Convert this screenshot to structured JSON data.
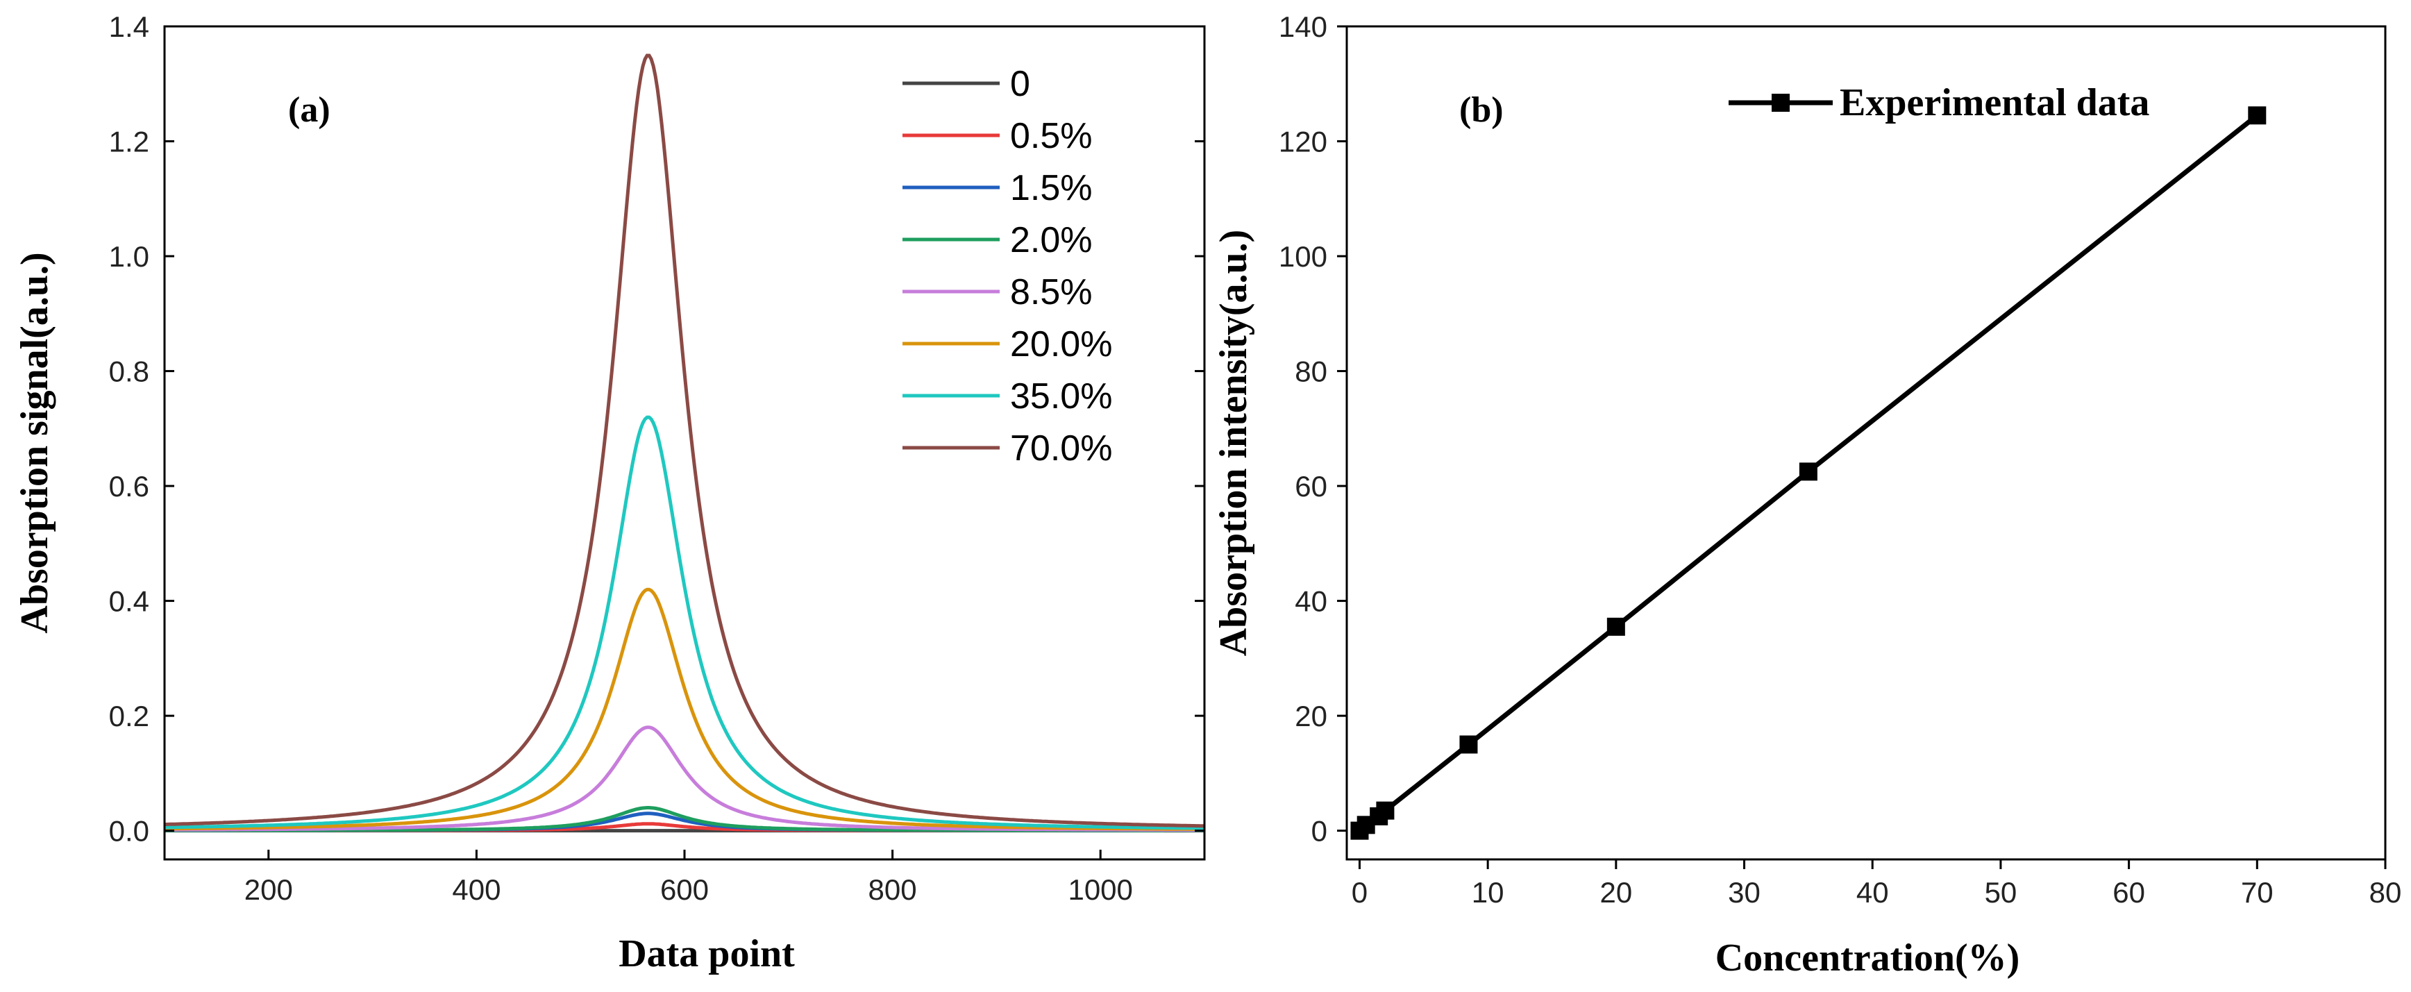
{
  "chart_data": [
    {
      "type": "line",
      "panel_label": "(a)",
      "xlabel": "Data point",
      "ylabel": "Absorption signal(a.u.)",
      "xlim": [
        100,
        1100
      ],
      "ylim": [
        -0.05,
        1.4
      ],
      "xticks": [
        200,
        400,
        600,
        800,
        1000
      ],
      "yticks": [
        0.0,
        0.2,
        0.4,
        0.6,
        0.8,
        1.0,
        1.2,
        1.4
      ],
      "xtick_labels": [
        "200",
        "400",
        "600",
        "800",
        "1000"
      ],
      "ytick_labels": [
        "0.0",
        "0.2",
        "0.4",
        "0.6",
        "0.8",
        "1.0",
        "1.2",
        "1.4"
      ],
      "peak_center": 565,
      "peak_half_width": 42,
      "legend_position": "top-right",
      "series": [
        {
          "name": "0",
          "color": "#444444",
          "peak": 0.0
        },
        {
          "name": "0.5%",
          "color": "#e83a3a",
          "peak": 0.012
        },
        {
          "name": "1.5%",
          "color": "#1f5fbf",
          "peak": 0.03
        },
        {
          "name": "2.0%",
          "color": "#1e9e5e",
          "peak": 0.04
        },
        {
          "name": "8.5%",
          "color": "#c77ddb",
          "peak": 0.18
        },
        {
          "name": "20.0%",
          "color": "#d9940c",
          "peak": 0.42
        },
        {
          "name": "35.0%",
          "color": "#1fc8c0",
          "peak": 0.72
        },
        {
          "name": "70.0%",
          "color": "#8b4a45",
          "peak": 1.35
        }
      ]
    },
    {
      "type": "line",
      "panel_label": "(b)",
      "xlabel": "Concentration(%)",
      "ylabel": "Absorption intensity(a.u.)",
      "xlim": [
        -1,
        80
      ],
      "ylim": [
        -5,
        140
      ],
      "xticks": [
        0,
        10,
        20,
        30,
        40,
        50,
        60,
        70,
        80
      ],
      "yticks": [
        0,
        20,
        40,
        60,
        80,
        100,
        120,
        140
      ],
      "xtick_labels": [
        "0",
        "10",
        "20",
        "30",
        "40",
        "50",
        "60",
        "70",
        "80"
      ],
      "ytick_labels": [
        "0",
        "20",
        "40",
        "60",
        "80",
        "100",
        "120",
        "140"
      ],
      "legend_position": "top-center",
      "series": [
        {
          "name": "Experimental data",
          "color": "#000000",
          "marker": "square",
          "x": [
            0,
            0.5,
            1.5,
            2.0,
            8.5,
            20.0,
            35.0,
            70.0
          ],
          "y": [
            0,
            1.0,
            2.5,
            3.5,
            15.0,
            35.5,
            62.5,
            124.5
          ]
        }
      ]
    }
  ]
}
